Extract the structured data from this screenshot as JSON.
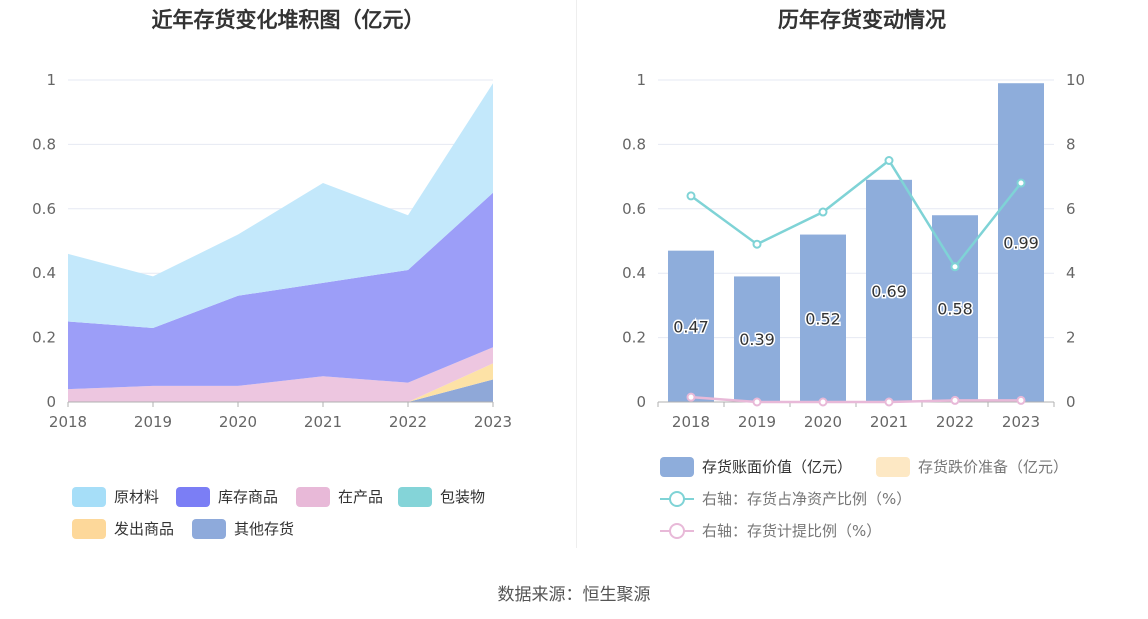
{
  "left": {
    "title": "近年存货变化堆积图（亿元）",
    "chart_data": {
      "type": "area",
      "stacked": true,
      "x": [
        "2018",
        "2019",
        "2020",
        "2021",
        "2022",
        "2023"
      ],
      "ylim": [
        0,
        1
      ],
      "yticks": [
        "0",
        "0.2",
        "0.4",
        "0.6",
        "0.8",
        "1"
      ],
      "grid": true,
      "legend_position": "bottom",
      "series": [
        {
          "name": "其他存货",
          "values": [
            0,
            0,
            0,
            0,
            0,
            0.07
          ],
          "color": "#8fa8d8"
        },
        {
          "name": "发出商品",
          "values": [
            0,
            0,
            0,
            0,
            0,
            0.05
          ],
          "color": "#fde2a6"
        },
        {
          "name": "包装物",
          "values": [
            0,
            0,
            0,
            0,
            0,
            0
          ],
          "color": "#88d4d8"
        },
        {
          "name": "在产品",
          "values": [
            0.04,
            0.05,
            0.05,
            0.08,
            0.06,
            0.05
          ],
          "color": "#edc6e0"
        },
        {
          "name": "库存商品",
          "values": [
            0.21,
            0.18,
            0.28,
            0.29,
            0.35,
            0.48
          ],
          "color": "#9c9ef8"
        },
        {
          "name": "原材料",
          "values": [
            0.21,
            0.16,
            0.19,
            0.31,
            0.17,
            0.34
          ],
          "color": "#c3e8fb"
        }
      ]
    },
    "legend": [
      {
        "name": "原材料",
        "color": "#a6def8"
      },
      {
        "name": "库存商品",
        "color": "#7b7ef5"
      },
      {
        "name": "在产品",
        "color": "#e8b9d8"
      },
      {
        "name": "包装物",
        "color": "#84d4d8"
      },
      {
        "name": "发出商品",
        "color": "#fdd89a"
      },
      {
        "name": "其他存货",
        "color": "#8eaadb"
      }
    ]
  },
  "right": {
    "title": "历年存货变动情况",
    "chart_data": {
      "type": "bar",
      "categories": [
        "2018",
        "2019",
        "2020",
        "2021",
        "2022",
        "2023"
      ],
      "ylim": [
        0,
        1
      ],
      "yticks": [
        "0",
        "0.2",
        "0.4",
        "0.6",
        "0.8",
        "1"
      ],
      "y2lim": [
        0,
        10
      ],
      "y2ticks": [
        "0",
        "2",
        "4",
        "6",
        "8",
        "10"
      ],
      "grid": true,
      "legend_position": "bottom",
      "series": [
        {
          "name": "存货账面价值（亿元）",
          "type": "bar",
          "axis": "left",
          "values": [
            0.47,
            0.39,
            0.52,
            0.69,
            0.58,
            0.99
          ],
          "labels": [
            "0.47",
            "0.39",
            "0.52",
            "0.69",
            "0.58",
            "0.99"
          ],
          "color": "#8eaddb"
        },
        {
          "name": "存货跌价准备（亿元）",
          "type": "bar",
          "axis": "left",
          "values": [
            0,
            0,
            0,
            0,
            0,
            0
          ],
          "color": "#fde8c4"
        },
        {
          "name": "右轴：存货占净资产比例（%）",
          "type": "line",
          "axis": "right",
          "values": [
            6.4,
            4.9,
            5.9,
            7.5,
            4.2,
            6.8
          ],
          "color": "#7fd3d6"
        },
        {
          "name": "右轴：存货计提比例（%）",
          "type": "line",
          "axis": "right",
          "values": [
            0.15,
            0,
            0,
            0,
            0.05,
            0.05
          ],
          "color": "#e8b9d8"
        }
      ]
    }
  },
  "source": "数据来源：恒生聚源"
}
